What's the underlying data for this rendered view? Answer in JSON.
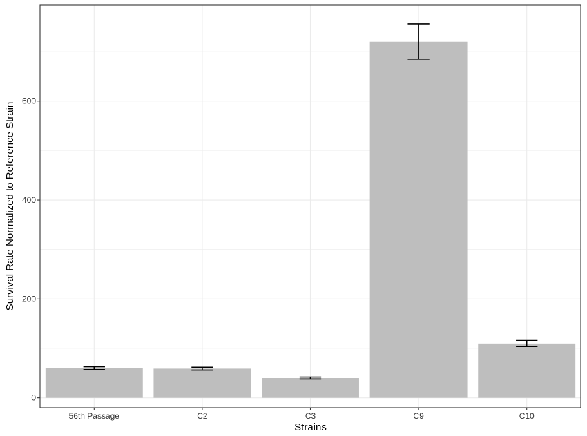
{
  "chart_data": {
    "type": "bar",
    "title": "",
    "xlabel": "Strains",
    "ylabel": "Survival Rate Normalized to Reference Strain",
    "categories": [
      "56th Passage",
      "C2",
      "C3",
      "C9",
      "C10"
    ],
    "values": [
      60,
      59,
      40,
      720,
      110
    ],
    "error": [
      [
        57,
        63
      ],
      [
        56,
        62
      ],
      [
        38,
        42
      ],
      [
        685,
        756
      ],
      [
        104,
        116
      ]
    ],
    "ylim": [
      -20,
      795
    ],
    "yticks": [
      0,
      200,
      400,
      600
    ],
    "grid": true,
    "legend": "none",
    "colors": {
      "bar": "#bebebe",
      "grid": "#ebebeb",
      "errorbar": "#000000",
      "panel_border": "#333333"
    }
  }
}
